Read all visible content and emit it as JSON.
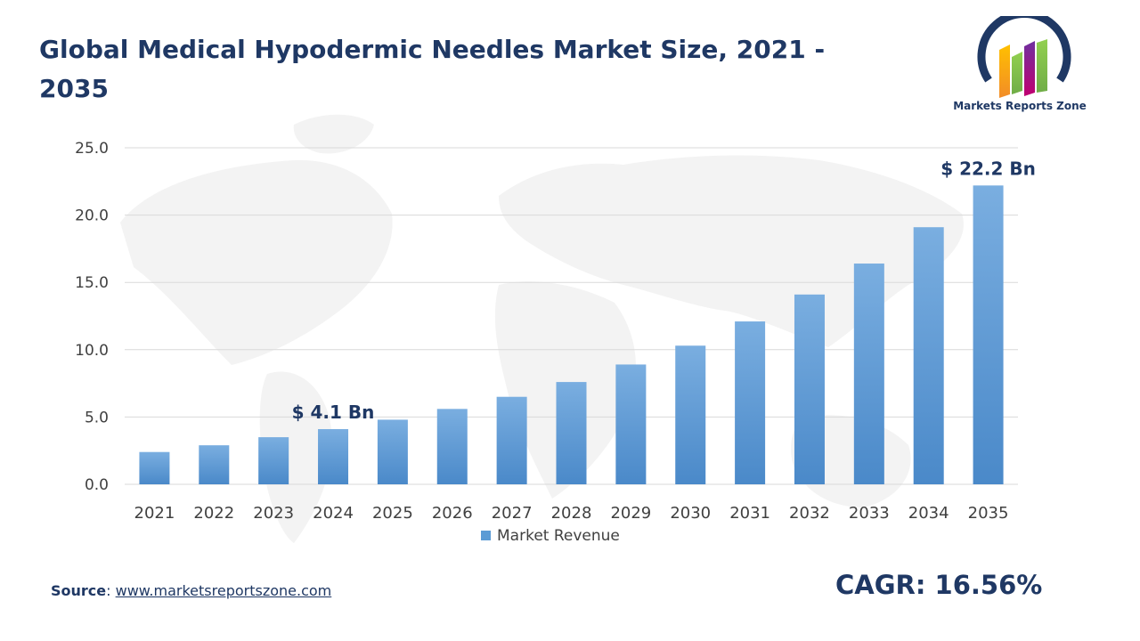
{
  "title": "Global Medical Hypodermic Needles Market Size, 2021 - 2035",
  "logo": {
    "text": "Markets Reports Zone",
    "icon": "markets-reports-zone-logo"
  },
  "source": {
    "label": "Source",
    "separator": ": ",
    "url": "www.marketsreportszone.com"
  },
  "cagr": "CAGR: 16.56%",
  "colors": {
    "title": "#1f3864",
    "bar": "#5b9bd5",
    "bar_dark": "#4a89c9",
    "grid": "#d9d9d9",
    "axis_text": "#404040"
  },
  "chart_data": {
    "type": "bar",
    "categories": [
      "2021",
      "2022",
      "2023",
      "2024",
      "2025",
      "2026",
      "2027",
      "2028",
      "2029",
      "2030",
      "2031",
      "2032",
      "2033",
      "2034",
      "2035"
    ],
    "series": [
      {
        "name": "Market Revenue",
        "values": [
          2.4,
          2.9,
          3.5,
          4.1,
          4.8,
          5.6,
          6.5,
          7.6,
          8.9,
          10.3,
          12.1,
          14.1,
          16.4,
          19.1,
          22.2
        ]
      }
    ],
    "ylim": [
      0,
      25
    ],
    "yticks": [
      "0.0",
      "5.0",
      "10.0",
      "15.0",
      "20.0",
      "25.0"
    ],
    "grid": true,
    "legend": "bottom",
    "annotations": [
      {
        "category": "2024",
        "text": "$ 4.1 Bn"
      },
      {
        "category": "2035",
        "text": "$ 22.2 Bn"
      }
    ]
  }
}
